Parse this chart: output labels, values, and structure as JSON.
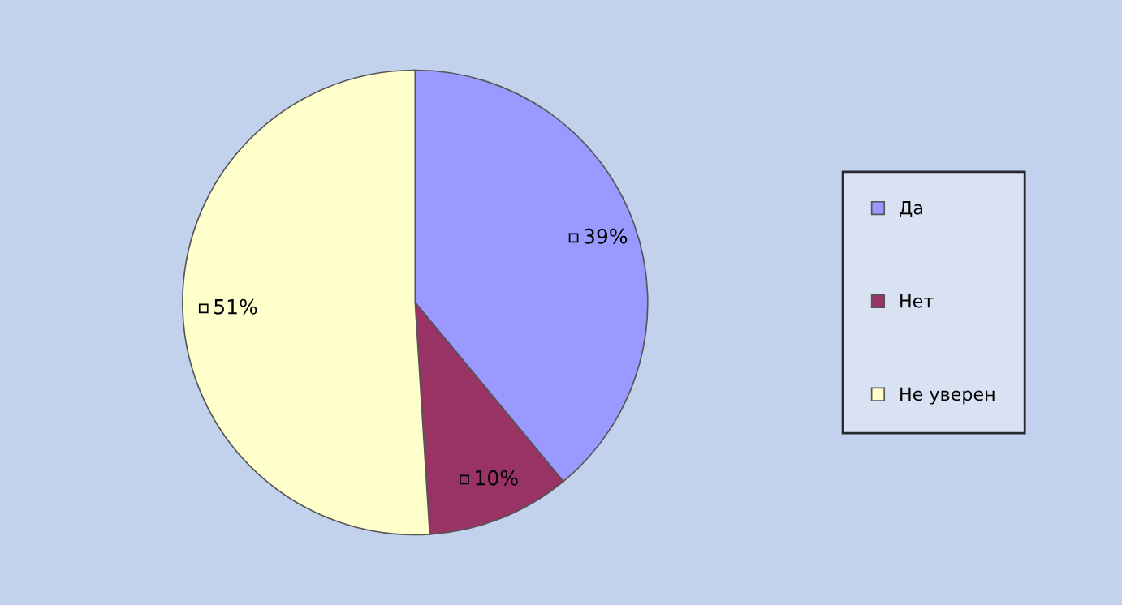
{
  "chart_data": {
    "type": "pie",
    "categories": [
      "Да",
      "Нет",
      "Не уверен"
    ],
    "values": [
      39,
      10,
      51
    ],
    "colors": [
      "#9999ff",
      "#993366",
      "#ffffcc"
    ],
    "value_labels": [
      "39%",
      "10%",
      "51%"
    ],
    "legend": "right"
  }
}
